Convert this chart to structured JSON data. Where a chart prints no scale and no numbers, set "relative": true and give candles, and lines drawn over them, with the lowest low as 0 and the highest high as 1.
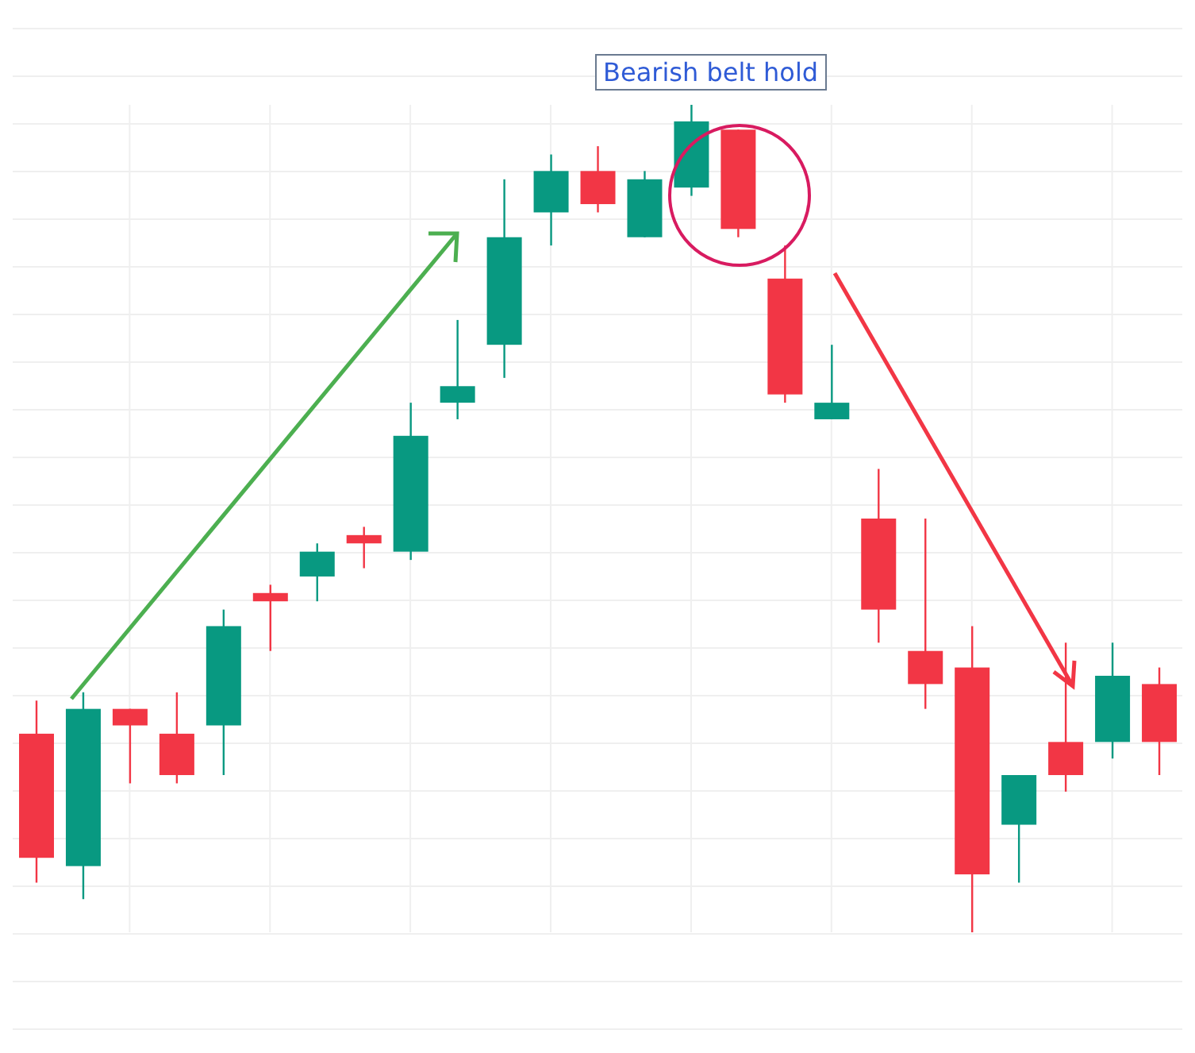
{
  "chart_data": {
    "type": "candlestick",
    "relative": true,
    "grid": true,
    "categories": [
      null,
      null,
      null,
      null,
      null,
      null,
      null,
      null,
      null,
      null,
      null,
      null,
      null,
      null,
      null,
      null,
      null,
      null,
      null,
      null,
      null,
      null,
      null,
      null,
      null
    ],
    "ohlc": [
      [
        0.24,
        0.28,
        0.06,
        0.09
      ],
      [
        0.08,
        0.29,
        0.04,
        0.27
      ],
      [
        0.27,
        0.27,
        0.18,
        0.25
      ],
      [
        0.24,
        0.29,
        0.18,
        0.19
      ],
      [
        0.25,
        0.39,
        0.19,
        0.37
      ],
      [
        0.41,
        0.42,
        0.34,
        0.4
      ],
      [
        0.43,
        0.47,
        0.4,
        0.46
      ],
      [
        0.48,
        0.49,
        0.44,
        0.47
      ],
      [
        0.46,
        0.64,
        0.45,
        0.6
      ],
      [
        0.64,
        0.74,
        0.62,
        0.66
      ],
      [
        0.71,
        0.91,
        0.67,
        0.84
      ],
      [
        0.87,
        0.94,
        0.83,
        0.92
      ],
      [
        0.92,
        0.95,
        0.87,
        0.88
      ],
      [
        0.84,
        0.92,
        0.84,
        0.91
      ],
      [
        0.9,
        1,
        0.89,
        0.98
      ],
      [
        0.97,
        0.97,
        0.84,
        0.85
      ],
      [
        0.79,
        0.83,
        0.64,
        0.65
      ],
      [
        0.62,
        0.71,
        0.62,
        0.64
      ],
      [
        0.5,
        0.56,
        0.35,
        0.39
      ],
      [
        0.34,
        0.5,
        0.27,
        0.3
      ],
      [
        0.32,
        0.37,
        0,
        0.07
      ],
      [
        0.13,
        0.19,
        0.06,
        0.19
      ],
      [
        0.23,
        0.35,
        0.17,
        0.19
      ],
      [
        0.23,
        0.35,
        0.21,
        0.31
      ],
      [
        0.3,
        0.32,
        0.19,
        0.23
      ]
    ],
    "colors": [
      "#f23645",
      "#089981",
      "#f23645",
      "#f23645",
      "#089981",
      "#f23645",
      "#089981",
      "#f23645",
      "#089981",
      "#089981",
      "#089981",
      "#089981",
      "#f23645",
      "#089981",
      "#089981",
      "#f23645",
      "#f23645",
      "#089981",
      "#f23645",
      "#f23645",
      "#f23645",
      "#089981",
      "#f23645",
      "#089981",
      "#f23645"
    ],
    "annotations": [
      "Bearish belt hold"
    ]
  }
}
